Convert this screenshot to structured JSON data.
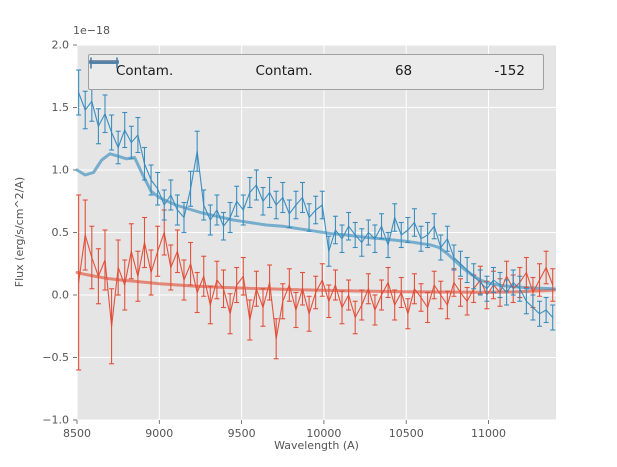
{
  "figure": {
    "offset_label": "1e−18",
    "xlabel": "Wavelength (A)",
    "ylabel": "Flux (erg/s/cm^2/A)"
  },
  "legend": {
    "items": [
      {
        "label": "Contam.",
        "type": "line",
        "color": "#E24A33"
      },
      {
        "label": "Contam.",
        "type": "line",
        "color": "#348ABD"
      },
      {
        "label": "68",
        "type": "errorbar",
        "color": "#E24A33"
      },
      {
        "label": "-152",
        "type": "errorbar",
        "color": "#348ABD"
      }
    ]
  },
  "chart_data": {
    "type": "line",
    "title": "",
    "xlabel": "Wavelength (A)",
    "ylabel": "Flux (erg/s/cm^2/A)",
    "y_offset_factor": "1e-18",
    "xlim": [
      8500,
      11410
    ],
    "ylim": [
      -1.0,
      2.0
    ],
    "x_ticks": [
      8500,
      9000,
      9500,
      10000,
      10500,
      11000
    ],
    "x_tick_labels": [
      "8500",
      "9000",
      "9500",
      "10000",
      "10500",
      "11000"
    ],
    "y_ticks": [
      -1.0,
      -0.5,
      0.0,
      0.5,
      1.0,
      1.5,
      2.0
    ],
    "y_tick_labels": [
      "−1.0",
      "−0.5",
      "0.0",
      "0.5",
      "1.0",
      "1.5",
      "2.0"
    ],
    "grid": true,
    "legend_position": "upper center",
    "plot_bg": "#E5E5E5",
    "grid_color": "#FFFFFF",
    "series": [
      {
        "name": "Contam.",
        "style": "smooth_line",
        "color": "#E24A33",
        "x": [
          8500,
          8550,
          8600,
          8650,
          8700,
          8750,
          8800,
          8850,
          8900,
          8950,
          9000,
          9050,
          9100,
          9150,
          9200,
          9250,
          9300,
          9350,
          9400,
          9450,
          9500,
          9550,
          9600,
          9650,
          9700,
          9750,
          9800,
          9850,
          9900,
          9950,
          10000,
          10050,
          10100,
          10150,
          10200,
          10250,
          10300,
          10350,
          10400,
          10450,
          10500,
          10550,
          10600,
          10650,
          10700,
          10750,
          10800,
          10850,
          10900,
          10950,
          11000,
          11050,
          11100,
          11150,
          11200,
          11250,
          11300,
          11350,
          11400
        ],
        "y": [
          0.18,
          0.165,
          0.152,
          0.14,
          0.13,
          0.122,
          0.115,
          0.11,
          0.103,
          0.097,
          0.09,
          0.086,
          0.081,
          0.077,
          0.072,
          0.069,
          0.066,
          0.063,
          0.06,
          0.058,
          0.056,
          0.053,
          0.051,
          0.05,
          0.048,
          0.046,
          0.044,
          0.042,
          0.041,
          0.039,
          0.038,
          0.036,
          0.035,
          0.034,
          0.032,
          0.031,
          0.03,
          0.029,
          0.028,
          0.027,
          0.026,
          0.026,
          0.025,
          0.025,
          0.024,
          0.024,
          0.023,
          0.023,
          0.022,
          0.022,
          0.022,
          0.023,
          0.024,
          0.025,
          0.027,
          0.03,
          0.033,
          0.036,
          0.04
        ]
      },
      {
        "name": "Contam.",
        "style": "smooth_line",
        "color": "#348ABD",
        "x": [
          8500,
          8550,
          8600,
          8650,
          8700,
          8750,
          8800,
          8850,
          8900,
          8950,
          9000,
          9050,
          9100,
          9150,
          9200,
          9250,
          9300,
          9350,
          9400,
          9450,
          9500,
          9550,
          9600,
          9650,
          9700,
          9750,
          9800,
          9850,
          9900,
          9950,
          10000,
          10050,
          10100,
          10150,
          10200,
          10250,
          10300,
          10350,
          10400,
          10450,
          10500,
          10550,
          10600,
          10650,
          10700,
          10750,
          10800,
          10850,
          10900,
          10950,
          11000,
          11050,
          11100,
          11150,
          11200,
          11250,
          11300,
          11350,
          11400
        ],
        "y": [
          1.0,
          0.96,
          0.98,
          1.08,
          1.13,
          1.11,
          1.09,
          1.1,
          0.96,
          0.83,
          0.78,
          0.75,
          0.72,
          0.7,
          0.68,
          0.66,
          0.645,
          0.63,
          0.615,
          0.6,
          0.59,
          0.58,
          0.57,
          0.56,
          0.555,
          0.55,
          0.54,
          0.53,
          0.52,
          0.51,
          0.5,
          0.49,
          0.485,
          0.478,
          0.47,
          0.462,
          0.455,
          0.45,
          0.443,
          0.436,
          0.43,
          0.42,
          0.41,
          0.4,
          0.38,
          0.33,
          0.27,
          0.21,
          0.16,
          0.12,
          0.095,
          0.082,
          0.073,
          0.067,
          0.062,
          0.058,
          0.055,
          0.052,
          0.05
        ]
      },
      {
        "name": "68",
        "style": "errorbar",
        "color": "#E24A33",
        "x": [
          8510,
          8550,
          8590,
          8630,
          8670,
          8710,
          8750,
          8790,
          8830,
          8870,
          8910,
          8950,
          8990,
          9030,
          9070,
          9110,
          9150,
          9190,
          9230,
          9270,
          9310,
          9350,
          9390,
          9430,
          9470,
          9510,
          9550,
          9590,
          9630,
          9670,
          9710,
          9750,
          9790,
          9830,
          9870,
          9910,
          9950,
          9990,
          10030,
          10070,
          10110,
          10150,
          10190,
          10230,
          10270,
          10310,
          10350,
          10390,
          10430,
          10470,
          10510,
          10550,
          10590,
          10630,
          10670,
          10710,
          10750,
          10790,
          10830,
          10870,
          10910,
          10950,
          10990,
          11030,
          11070,
          11110,
          11150,
          11190,
          11230,
          11270,
          11310,
          11350,
          11390
        ],
        "y": [
          0.1,
          0.48,
          0.3,
          0.15,
          0.28,
          -0.25,
          0.22,
          0.08,
          0.35,
          0.15,
          0.42,
          0.18,
          0.35,
          0.5,
          0.22,
          0.35,
          0.12,
          0.25,
          0.02,
          0.15,
          -0.08,
          0.12,
          0.05,
          -0.15,
          0.08,
          0.15,
          -0.2,
          0.05,
          -0.1,
          0.1,
          -0.35,
          -0.05,
          0.08,
          -0.12,
          0.05,
          -0.15,
          0.02,
          0.12,
          -0.05,
          0.08,
          -0.1,
          0.0,
          -0.18,
          -0.08,
          0.05,
          -0.12,
          0.0,
          0.1,
          -0.08,
          0.02,
          -0.15,
          0.05,
          -0.02,
          -0.1,
          0.08,
          0.0,
          -0.08,
          0.1,
          0.02,
          -0.05,
          0.05,
          0.12,
          0.0,
          0.08,
          0.02,
          0.15,
          0.05,
          0.1,
          0.18,
          0.02,
          0.12,
          0.22,
          0.08
        ],
        "yerr": [
          0.7,
          0.28,
          0.25,
          0.22,
          0.24,
          0.3,
          0.22,
          0.2,
          0.22,
          0.2,
          0.2,
          0.18,
          0.2,
          0.18,
          0.18,
          0.17,
          0.16,
          0.17,
          0.16,
          0.16,
          0.15,
          0.15,
          0.15,
          0.16,
          0.14,
          0.15,
          0.16,
          0.14,
          0.15,
          0.14,
          0.16,
          0.14,
          0.13,
          0.14,
          0.13,
          0.14,
          0.13,
          0.13,
          0.13,
          0.12,
          0.13,
          0.12,
          0.13,
          0.12,
          0.12,
          0.12,
          0.12,
          0.12,
          0.12,
          0.12,
          0.12,
          0.12,
          0.11,
          0.12,
          0.11,
          0.11,
          0.11,
          0.11,
          0.11,
          0.11,
          0.11,
          0.11,
          0.11,
          0.11,
          0.11,
          0.12,
          0.11,
          0.12,
          0.12,
          0.12,
          0.13,
          0.13,
          0.13
        ]
      },
      {
        "name": "-152",
        "style": "errorbar",
        "color": "#348ABD",
        "x": [
          8510,
          8550,
          8590,
          8630,
          8670,
          8710,
          8750,
          8790,
          8830,
          8870,
          8910,
          8950,
          8990,
          9030,
          9070,
          9110,
          9150,
          9190,
          9230,
          9270,
          9310,
          9350,
          9390,
          9430,
          9470,
          9510,
          9550,
          9590,
          9630,
          9670,
          9710,
          9750,
          9790,
          9830,
          9870,
          9910,
          9950,
          9990,
          10030,
          10070,
          10110,
          10150,
          10190,
          10230,
          10270,
          10310,
          10350,
          10390,
          10430,
          10470,
          10510,
          10550,
          10590,
          10630,
          10670,
          10710,
          10750,
          10790,
          10830,
          10870,
          10910,
          10950,
          10990,
          11030,
          11070,
          11110,
          11150,
          11190,
          11230,
          11270,
          11310,
          11350,
          11390
        ],
        "y": [
          1.62,
          1.48,
          1.55,
          1.35,
          1.45,
          1.3,
          1.18,
          1.32,
          1.22,
          1.28,
          1.05,
          0.92,
          0.85,
          0.72,
          0.8,
          0.68,
          0.62,
          0.85,
          1.15,
          0.72,
          0.6,
          0.68,
          0.55,
          0.62,
          0.75,
          0.68,
          0.82,
          0.88,
          0.75,
          0.82,
          0.72,
          0.78,
          0.65,
          0.72,
          0.78,
          0.62,
          0.68,
          0.72,
          0.35,
          0.52,
          0.45,
          0.55,
          0.48,
          0.42,
          0.5,
          0.45,
          0.55,
          0.4,
          0.62,
          0.48,
          0.52,
          0.58,
          0.45,
          0.48,
          0.55,
          0.38,
          0.45,
          0.3,
          0.25,
          0.2,
          0.15,
          0.1,
          0.05,
          0.12,
          0.08,
          0.02,
          0.1,
          0.05,
          -0.05,
          -0.1,
          -0.15,
          -0.12,
          -0.18
        ],
        "yerr": [
          0.18,
          0.15,
          0.16,
          0.14,
          0.15,
          0.14,
          0.13,
          0.14,
          0.13,
          0.14,
          0.13,
          0.12,
          0.13,
          0.12,
          0.12,
          0.12,
          0.12,
          0.14,
          0.16,
          0.12,
          0.12,
          0.12,
          0.11,
          0.12,
          0.12,
          0.12,
          0.12,
          0.12,
          0.11,
          0.12,
          0.11,
          0.12,
          0.11,
          0.11,
          0.12,
          0.11,
          0.11,
          0.11,
          0.12,
          0.11,
          0.11,
          0.11,
          0.1,
          0.11,
          0.1,
          0.11,
          0.1,
          0.1,
          0.11,
          0.1,
          0.1,
          0.11,
          0.1,
          0.1,
          0.1,
          0.1,
          0.1,
          0.1,
          0.1,
          0.1,
          0.1,
          0.1,
          0.1,
          0.1,
          0.1,
          0.1,
          0.1,
          0.1,
          0.1,
          0.1,
          0.1,
          0.1,
          0.1
        ]
      }
    ]
  }
}
